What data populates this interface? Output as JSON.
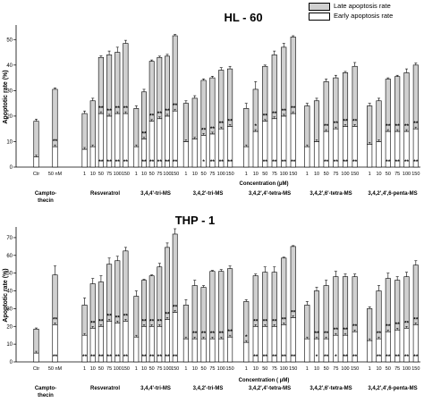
{
  "legend": {
    "late": "Late apoptosis rate",
    "early": "Early apoptosis rate"
  },
  "colors": {
    "late_fill": "#d0d0d0",
    "early_fill": "#ffffff",
    "stroke": "#000000"
  },
  "chart_data": [
    {
      "type": "bar",
      "stacked": true,
      "title": "HL - 60",
      "ylabel": "Apoptotic rate (%)",
      "xlabel": "Concentration (μM)",
      "ylim": [
        0,
        55
      ],
      "yticks": [
        0,
        10,
        20,
        30,
        40,
        50
      ],
      "series_names": [
        "Early apoptosis rate",
        "Late apoptosis rate"
      ],
      "groups": [
        {
          "label": "Campto-\nthecin",
          "tick_labels": [
            "Ctr",
            "50 nM"
          ],
          "early": [
            4,
            8
          ],
          "late": [
            14,
            22.5
          ],
          "error": [
            0.8,
            0.5
          ],
          "stars_top": [
            "",
            "**"
          ],
          "stars_bottom": [
            "",
            ""
          ]
        },
        {
          "label": "Resveratrol",
          "tick_labels": [
            "1",
            "10",
            "50",
            "75",
            "100",
            "150"
          ],
          "early": [
            7,
            8,
            21,
            20,
            21,
            21
          ],
          "late": [
            14,
            18,
            22,
            24,
            24,
            27.5
          ],
          "error": [
            1,
            1,
            0.6,
            1.5,
            2,
            1.2
          ],
          "stars_top": [
            "",
            "",
            "**",
            "**",
            "**",
            "**"
          ],
          "stars_bottom": [
            "",
            "",
            "**",
            "**",
            "**",
            "**"
          ]
        },
        {
          "label": "3,4,4'-tri-MS",
          "tick_labels": [
            "1",
            "10",
            "50",
            "75",
            "100",
            "150"
          ],
          "early": [
            8,
            11,
            18,
            19,
            20,
            22
          ],
          "late": [
            15,
            18.5,
            23.5,
            24,
            23.5,
            29.5
          ],
          "error": [
            1,
            1,
            0.5,
            0.5,
            0.7,
            0.5
          ],
          "stars_top": [
            "",
            "**",
            "**",
            "**",
            "**",
            "**"
          ],
          "stars_bottom": [
            "",
            "**",
            "**",
            "**",
            "**",
            "**"
          ]
        },
        {
          "label": "3,4,2'-tri-MS",
          "tick_labels": [
            "1",
            "10",
            "50",
            "75",
            "100",
            "150"
          ],
          "early": [
            10,
            11,
            12.5,
            13,
            15,
            16
          ],
          "late": [
            15,
            16,
            21.5,
            22,
            23,
            22.5
          ],
          "error": [
            1,
            1,
            0.6,
            0.6,
            1,
            1
          ],
          "stars_top": [
            "",
            "",
            "**",
            "**",
            "**",
            "**"
          ],
          "stars_bottom": [
            "",
            "",
            "*",
            "**",
            "**",
            "**"
          ]
        },
        {
          "label": "3,4,2',4'-tetra-MS",
          "tick_labels": [
            "1",
            "10",
            "50",
            "75",
            "100",
            "150"
          ],
          "early": [
            8,
            14,
            18,
            19,
            20,
            21
          ],
          "late": [
            15,
            16.5,
            21.5,
            25,
            27,
            30
          ],
          "error": [
            2,
            3,
            0.5,
            1.5,
            1.5,
            0.5
          ],
          "stars_top": [
            "",
            "*",
            "**",
            "**",
            "**",
            "**"
          ],
          "stars_bottom": [
            "",
            "",
            "**",
            "**",
            "**",
            "**"
          ]
        },
        {
          "label": "3,4,2',6'-tetra-MS",
          "tick_labels": [
            "1",
            "10",
            "50",
            "75",
            "100",
            "150"
          ],
          "early": [
            8,
            10,
            14,
            15,
            16,
            16
          ],
          "late": [
            16,
            16,
            19.5,
            20,
            21,
            23.5
          ],
          "error": [
            1,
            1,
            1,
            1,
            0.5,
            1.5
          ],
          "stars_top": [
            "",
            "",
            "**",
            "**",
            "**",
            "**"
          ],
          "stars_bottom": [
            "",
            "",
            "**",
            "**",
            "**",
            "**"
          ]
        },
        {
          "label": "3,4,2',4',6-penta-MS",
          "tick_labels": [
            "1",
            "10",
            "50",
            "75",
            "100",
            "150"
          ],
          "early": [
            9,
            10,
            14,
            14,
            14,
            15
          ],
          "late": [
            15,
            16,
            20.5,
            21.5,
            23,
            25
          ],
          "error": [
            1,
            1,
            0.5,
            0.5,
            1.5,
            0.8
          ],
          "stars_top": [
            "",
            "",
            "**",
            "**",
            "**",
            "**"
          ],
          "stars_bottom": [
            "",
            "",
            "**",
            "**",
            "**",
            "**"
          ]
        }
      ]
    },
    {
      "type": "bar",
      "stacked": true,
      "title": "THP - 1",
      "ylabel": "Apoptotic rate (%)",
      "xlabel": "Concentration ( μM)",
      "ylim": [
        0,
        75
      ],
      "yticks": [
        0,
        10,
        20,
        30,
        40,
        50,
        60,
        70
      ],
      "series_names": [
        "Early apoptosis rate",
        "Late apoptosis rate"
      ],
      "groups": [
        {
          "label": "Campto-\nthecin",
          "tick_labels": [
            "Ctr",
            "50 nM"
          ],
          "early": [
            5,
            21
          ],
          "late": [
            13.5,
            28
          ],
          "error": [
            0.6,
            5
          ],
          "stars_top": [
            "",
            "**"
          ],
          "stars_bottom": [
            "",
            "**"
          ]
        },
        {
          "label": "Resveratrol",
          "tick_labels": [
            "1",
            "10",
            "50",
            "75",
            "100",
            "150"
          ],
          "early": [
            15,
            19,
            20,
            23,
            22,
            23
          ],
          "late": [
            17,
            25,
            25,
            32,
            35,
            39.5
          ],
          "error": [
            4,
            3,
            3.5,
            3.5,
            2.5,
            2
          ],
          "stars_top": [
            "",
            "**",
            "**",
            "**",
            "**",
            "**"
          ],
          "stars_bottom": [
            "**",
            "**",
            "**",
            "**",
            "**",
            "**"
          ]
        },
        {
          "label": "3,4,4'-tri-MS",
          "tick_labels": [
            "1",
            "10",
            "50",
            "75",
            "100",
            "150"
          ],
          "early": [
            14,
            20,
            20,
            20,
            24,
            28
          ],
          "late": [
            23,
            26,
            28.5,
            33.5,
            40.5,
            44
          ],
          "error": [
            3,
            0.5,
            0.5,
            2,
            2.5,
            3
          ],
          "stars_top": [
            "",
            "**",
            "**",
            "**",
            "**",
            "**"
          ],
          "stars_bottom": [
            "",
            "**",
            "**",
            "**",
            "**",
            "**"
          ]
        },
        {
          "label": "3,4,2'-tri-MS",
          "tick_labels": [
            "1",
            "10",
            "50",
            "75",
            "100",
            "150"
          ],
          "early": [
            13,
            13,
            13,
            13,
            13,
            14
          ],
          "late": [
            19,
            30,
            29,
            38,
            38,
            38.5
          ],
          "error": [
            3,
            3,
            1,
            0.5,
            1,
            1.5
          ],
          "stars_top": [
            "",
            "**",
            "**",
            "**",
            "**",
            "**"
          ],
          "stars_bottom": [
            "",
            "",
            "",
            "",
            "",
            ""
          ]
        },
        {
          "label": "3,4,2',4'-tetra-MS",
          "tick_labels": [
            "1",
            "10",
            "50",
            "75",
            "100",
            "150"
          ],
          "early": [
            11,
            20,
            20,
            20,
            21,
            25
          ],
          "late": [
            23,
            28.5,
            30.5,
            30.5,
            37.5,
            40
          ],
          "error": [
            1,
            1,
            3,
            3,
            0.5,
            0.5
          ],
          "stars_top": [
            "*",
            "**",
            "**",
            "**",
            "**",
            "**"
          ],
          "stars_bottom": [
            "",
            "**",
            "**",
            "**",
            "**",
            "**"
          ]
        },
        {
          "label": "3,4,2',6'-tetra-MS",
          "tick_labels": [
            "1",
            "10",
            "50",
            "75",
            "100",
            "150"
          ],
          "early": [
            13,
            13,
            13,
            15,
            15,
            17
          ],
          "late": [
            19,
            27,
            30,
            33,
            33,
            31
          ],
          "error": [
            2,
            2,
            3,
            3,
            1.5,
            1.5
          ],
          "stars_top": [
            "",
            "**",
            "**",
            "**",
            "**",
            "**"
          ],
          "stars_bottom": [
            "",
            "*",
            "**",
            "*",
            "**",
            "**"
          ]
        },
        {
          "label": "3,4,2',4',6-penta-MS",
          "tick_labels": [
            "1",
            "10",
            "50",
            "75",
            "100",
            "150"
          ],
          "early": [
            12,
            13,
            17,
            18,
            19,
            21
          ],
          "late": [
            18,
            27,
            30,
            28,
            29,
            33.5
          ],
          "error": [
            1,
            3,
            3,
            2,
            2.5,
            2.5
          ],
          "stars_top": [
            "",
            "**",
            "**",
            "**",
            "**",
            "**"
          ],
          "stars_bottom": [
            "",
            "**",
            "**",
            "**",
            "**",
            "**"
          ]
        }
      ]
    }
  ]
}
